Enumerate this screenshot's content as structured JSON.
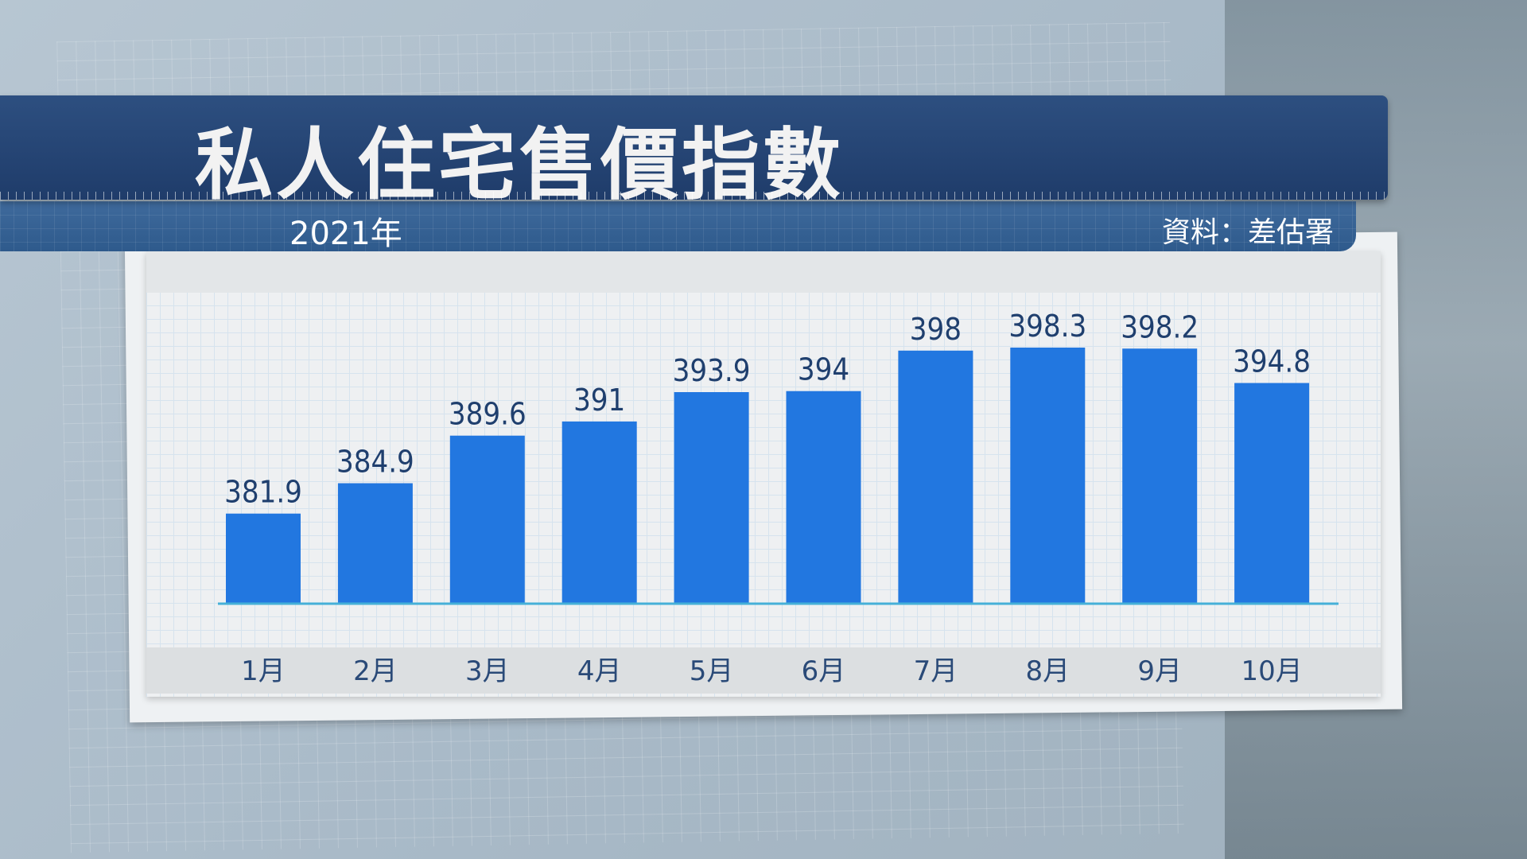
{
  "header": {
    "title": "私人住宅售價指數",
    "year": "2021年",
    "source": "資料：差估署"
  },
  "colors": {
    "bar": "#2277e0",
    "label": "#1f3f6e",
    "banner": "#24426f"
  },
  "chart_data": {
    "type": "bar",
    "title": "私人住宅售價指數",
    "subtitle": "2021年",
    "categories": [
      "1月",
      "2月",
      "3月",
      "4月",
      "5月",
      "6月",
      "7月",
      "8月",
      "9月",
      "10月"
    ],
    "values": [
      381.9,
      384.9,
      389.6,
      391,
      393.9,
      394,
      398,
      398.3,
      398.2,
      394.8
    ],
    "value_labels": [
      "381.9",
      "384.9",
      "389.6",
      "391",
      "393.9",
      "394",
      "398",
      "398.3",
      "398.2",
      "394.8"
    ],
    "ylim": [
      373,
      400
    ],
    "grid": false,
    "xlabel": "",
    "ylabel": ""
  }
}
